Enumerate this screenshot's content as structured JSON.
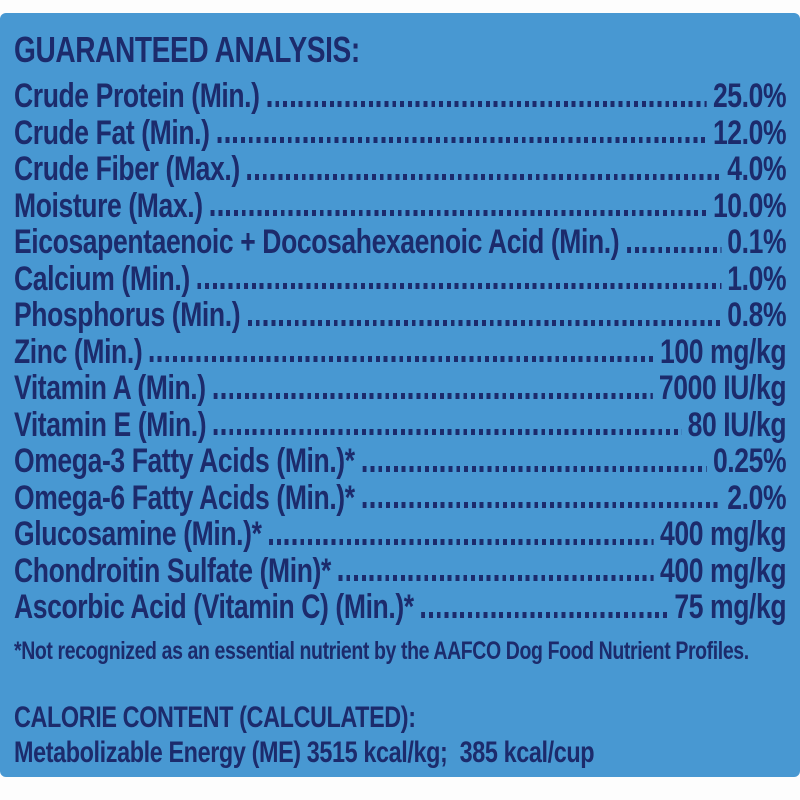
{
  "colors": {
    "page_background": "#FDFDFD",
    "panel_background": "#4898D2",
    "text_ink": "#1C2B6C"
  },
  "panel": {
    "title": "GUARANTEED ANALYSIS:",
    "rows": [
      {
        "label": "Crude Protein (Min.)",
        "value": "25.0%"
      },
      {
        "label": "Crude Fat (Min.)",
        "value": "12.0%"
      },
      {
        "label": "Crude Fiber (Max.)",
        "value": "4.0%"
      },
      {
        "label": "Moisture (Max.)",
        "value": "10.0%"
      },
      {
        "label": "Eicosapentaenoic + Docosahexaenoic Acid (Min.)",
        "value": "0.1%"
      },
      {
        "label": "Calcium (Min.)",
        "value": "1.0%"
      },
      {
        "label": "Phosphorus (Min.)",
        "value": "0.8%"
      },
      {
        "label": "Zinc (Min.)",
        "value": "100 mg/kg"
      },
      {
        "label": "Vitamin A (Min.)",
        "value": "7000 IU/kg"
      },
      {
        "label": "Vitamin E (Min.)",
        "value": "80 IU/kg"
      },
      {
        "label": "Omega-3 Fatty Acids (Min.)*",
        "value": "0.25%"
      },
      {
        "label": "Omega-6 Fatty Acids (Min.)*",
        "value": "2.0%"
      },
      {
        "label": "Glucosamine (Min.)*",
        "value": "400 mg/kg"
      },
      {
        "label": "Chondroitin Sulfate (Min)*",
        "value": "400 mg/kg"
      },
      {
        "label": "Ascorbic Acid (Vitamin C) (Min.)*",
        "value": "75 mg/kg"
      }
    ],
    "footnote": "*Not recognized as an essential nutrient by the AAFCO Dog Food Nutrient Profiles.",
    "calorie": {
      "heading": "CALORIE CONTENT (CALCULATED):",
      "line": "Metabolizable Energy (ME) 3515 kcal/kg;  385 kcal/cup"
    }
  }
}
